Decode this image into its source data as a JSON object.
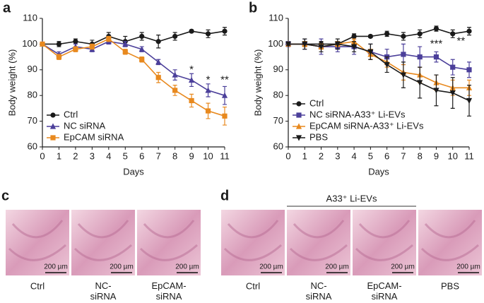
{
  "chart_data": [
    {
      "type": "line",
      "panel_label": "a",
      "xlabel": "Days",
      "ylabel": "Body weight (%)",
      "x": [
        0,
        1,
        2,
        3,
        4,
        5,
        6,
        7,
        8,
        9,
        10,
        11
      ],
      "xlim": [
        0,
        11
      ],
      "xticks": [
        0,
        1,
        2,
        3,
        4,
        5,
        6,
        7,
        8,
        9,
        10,
        11
      ],
      "ylim": [
        60,
        110
      ],
      "yticks": [
        60,
        70,
        80,
        90,
        100,
        110
      ],
      "grid": false,
      "legend": "lower left",
      "series": [
        {
          "name": "Ctrl",
          "color": "#1a1a1a",
          "marker": "circle",
          "values": [
            100,
            100,
            101,
            100,
            103,
            101,
            103,
            101,
            103,
            105,
            104,
            105
          ],
          "errors": [
            0.5,
            1,
            1,
            1.5,
            1.5,
            2,
            1.5,
            2.5,
            1.5,
            0.5,
            1.5,
            1.5
          ]
        },
        {
          "name": "NC siRNA",
          "color": "#4b3f9a",
          "marker": "triangle-up",
          "values": [
            100,
            96,
            99,
            98,
            101,
            100,
            98,
            93,
            88,
            86,
            82,
            80
          ],
          "errors": [
            0.5,
            1,
            1,
            1,
            1,
            1,
            1,
            1,
            2,
            2.5,
            2.5,
            3.5
          ]
        },
        {
          "name": "EpCAM siRNA",
          "color": "#e8891e",
          "marker": "square",
          "values": [
            100,
            95,
            98,
            99,
            102,
            97,
            94,
            87,
            82,
            78,
            74,
            72
          ],
          "errors": [
            0.5,
            1,
            1,
            1,
            1,
            1,
            1,
            2,
            2,
            2.5,
            3,
            3.5
          ]
        }
      ],
      "annotations": [
        {
          "text": "*",
          "x": 9,
          "y": 90
        },
        {
          "text": "*",
          "x": 10,
          "y": 86
        },
        {
          "text": "**",
          "x": 11,
          "y": 86
        }
      ],
      "annotation_color": "#e8891e"
    },
    {
      "type": "line",
      "panel_label": "b",
      "xlabel": "Days",
      "ylabel": "Body weight (%)",
      "x": [
        0,
        1,
        2,
        3,
        4,
        5,
        6,
        7,
        8,
        9,
        10,
        11
      ],
      "xlim": [
        0,
        11
      ],
      "xticks": [
        0,
        1,
        2,
        3,
        4,
        5,
        6,
        7,
        8,
        9,
        10,
        11
      ],
      "ylim": [
        60,
        110
      ],
      "yticks": [
        60,
        70,
        80,
        90,
        100,
        110
      ],
      "grid": false,
      "legend": "lower left",
      "series": [
        {
          "name": "Ctrl",
          "color": "#1a1a1a",
          "marker": "circle",
          "values": [
            100,
            100,
            100,
            100,
            103,
            103,
            104,
            103,
            104,
            106,
            104,
            105
          ],
          "errors": [
            0.5,
            1,
            1,
            1,
            1,
            0.5,
            1,
            1.5,
            1.5,
            1,
            1.5,
            1.5
          ]
        },
        {
          "name": "NC siRNA-A33⁺ Li-EVs",
          "color": "#4b3f9a",
          "marker": "square",
          "values": [
            100,
            100,
            99,
            99,
            99,
            97,
            95,
            96,
            95,
            95,
            91,
            90
          ],
          "errors": [
            1,
            2,
            3,
            2,
            3,
            3,
            3,
            4,
            4,
            2,
            3,
            3
          ]
        },
        {
          "name": "EpCAM siRNA-A33⁺ Li-EVs",
          "color": "#e8891e",
          "marker": "triangle-up",
          "values": [
            100,
            100,
            99,
            100,
            101,
            96,
            93,
            89,
            88,
            85,
            83,
            83
          ],
          "errors": [
            0.5,
            1,
            1,
            1,
            1,
            2,
            2,
            3,
            3,
            3,
            3,
            3
          ]
        },
        {
          "name": "PBS",
          "color": "#1a1a1a",
          "marker": "triangle-down",
          "values": [
            100,
            100,
            99,
            100,
            99,
            97,
            92,
            88,
            85,
            82,
            81,
            78
          ],
          "errors": [
            0.5,
            2,
            2,
            2,
            2,
            3,
            3,
            5,
            6,
            6,
            6,
            6
          ]
        }
      ],
      "annotations": [
        {
          "text": "***",
          "x": 9,
          "y": 100
        },
        {
          "text": "**",
          "x": 10.5,
          "y": 101
        }
      ],
      "annotation_color": "#e8891e"
    }
  ],
  "image_panels": [
    {
      "label": "c",
      "images": [
        {
          "caption": "Ctrl",
          "scale_bar": "200 µm"
        },
        {
          "caption": "NC-\nsiRNA",
          "scale_bar": "200 µm"
        },
        {
          "caption": "EpCAM-\nsiRNA",
          "scale_bar": "200 µm"
        }
      ]
    },
    {
      "label": "d",
      "group_label": "A33⁺ Li-EVs",
      "images": [
        {
          "caption": "Ctrl",
          "scale_bar": "200 µm"
        },
        {
          "caption": "NC-\nsiRNA",
          "scale_bar": "200 µm"
        },
        {
          "caption": "EpCAM-\nsiRNA",
          "scale_bar": "200 µm"
        },
        {
          "caption": "PBS",
          "scale_bar": "200 µm"
        }
      ]
    }
  ]
}
